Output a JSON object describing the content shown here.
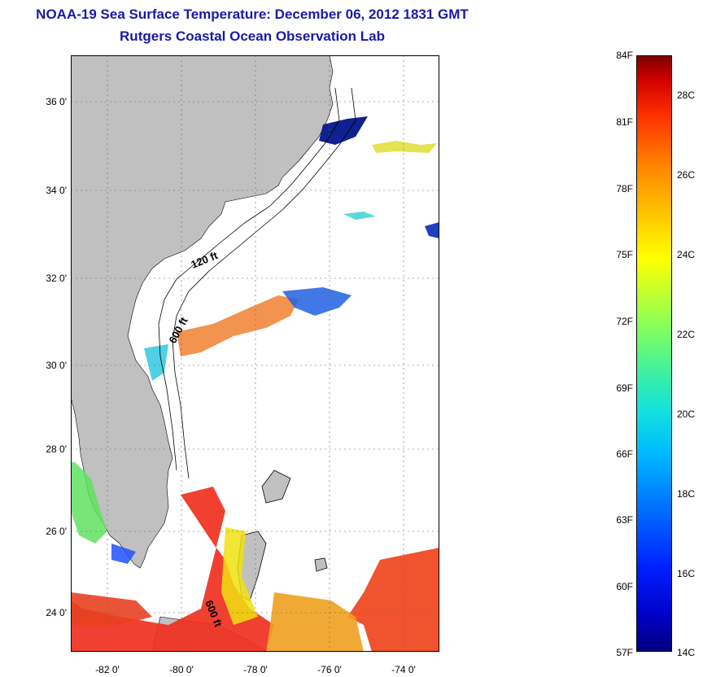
{
  "title": {
    "line1": "NOAA-19 Sea Surface Temperature:  December 06, 2012 1831 GMT",
    "line2": "Rutgers Coastal Ocean Observation Lab"
  },
  "map": {
    "y_labels": [
      "36 0'",
      "34 0'",
      "32 0'",
      "30 0'",
      "28 0'",
      "26 0'",
      "24 0'"
    ],
    "x_labels": [
      "-82 0'",
      "-80 0'",
      "-78 0'",
      "-76 0'",
      "-74 0'"
    ],
    "contour_labels": [
      "120 ft",
      "600 ft",
      "600 ft"
    ],
    "land_color": "#c0c0c0"
  },
  "colorbar": {
    "fahrenheit_labels": [
      "84F",
      "81F",
      "78F",
      "75F",
      "72F",
      "69F",
      "66F",
      "63F",
      "60F",
      "57F"
    ],
    "celsius_labels": [
      "28C",
      "26C",
      "24C",
      "22C",
      "20C",
      "18C",
      "16C",
      "14C"
    ],
    "range_f": [
      57,
      84
    ],
    "range_c": [
      14,
      29
    ]
  }
}
